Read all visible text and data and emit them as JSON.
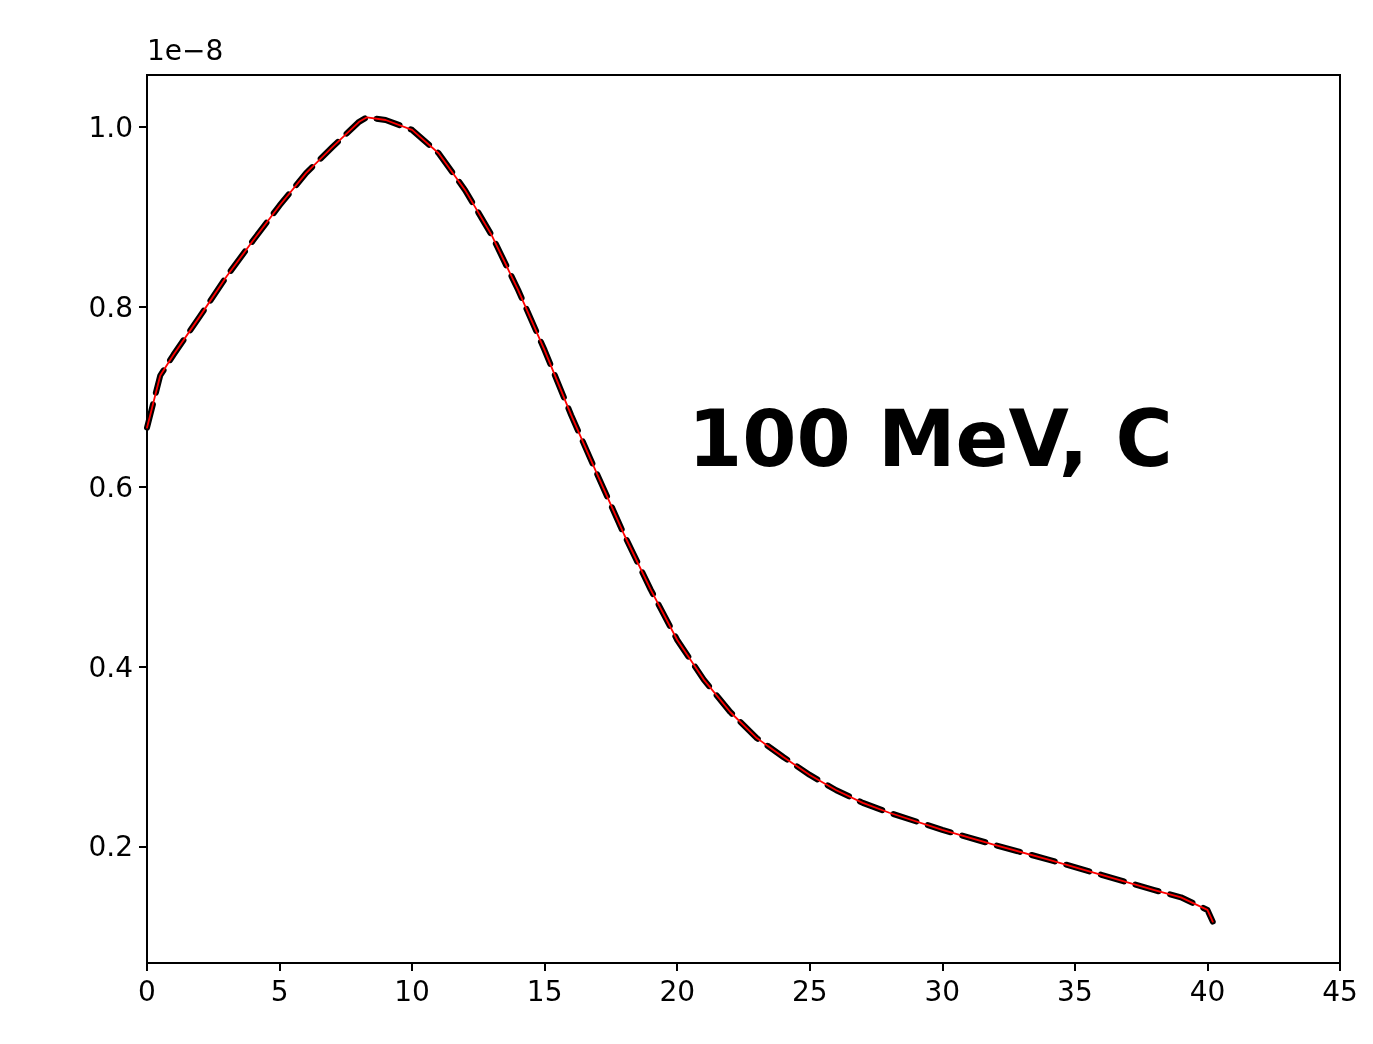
{
  "chart_data": {
    "type": "line",
    "ylabel": "1e−8",
    "x": [
      0,
      0.5,
      1,
      2,
      3,
      4,
      5,
      6,
      7,
      8,
      8.3,
      9,
      10,
      11,
      12,
      13,
      14,
      15,
      16,
      17,
      18,
      19,
      20,
      21,
      22,
      23,
      24,
      25,
      26,
      27,
      28,
      30,
      32,
      34,
      36,
      38,
      39,
      40,
      40.2
    ],
    "series": [
      {
        "color": "#000000",
        "line_style": "dashed",
        "values": [
          0.666,
          0.724,
          0.747,
          0.79,
          0.834,
          0.874,
          0.913,
          0.949,
          0.978,
          1.006,
          1.011,
          1.008,
          0.997,
          0.971,
          0.93,
          0.88,
          0.819,
          0.752,
          0.68,
          0.613,
          0.547,
          0.486,
          0.43,
          0.386,
          0.35,
          0.321,
          0.3,
          0.28,
          0.263,
          0.249,
          0.238,
          0.219,
          0.202,
          0.186,
          0.169,
          0.152,
          0.144,
          0.13,
          0.117
        ]
      },
      {
        "color": "#ff0000",
        "line_style": "solid",
        "values": [
          0.666,
          0.724,
          0.747,
          0.79,
          0.834,
          0.874,
          0.913,
          0.949,
          0.978,
          1.006,
          1.011,
          1.008,
          0.997,
          0.971,
          0.93,
          0.88,
          0.819,
          0.752,
          0.68,
          0.613,
          0.547,
          0.486,
          0.43,
          0.386,
          0.35,
          0.321,
          0.3,
          0.28,
          0.263,
          0.249,
          0.238,
          0.219,
          0.202,
          0.186,
          0.169,
          0.152,
          0.144,
          0.13,
          0.117
        ]
      }
    ],
    "xlim": [
      0,
      45
    ],
    "xticks": [
      0,
      5,
      10,
      15,
      20,
      25,
      30,
      35,
      40,
      45
    ],
    "ylim": [
      0.071,
      1.058
    ],
    "yticks": [
      {
        "value": 0.2,
        "label": "0.2"
      },
      {
        "value": 0.4,
        "label": "0.4"
      },
      {
        "value": 0.6,
        "label": "0.6"
      },
      {
        "value": 0.8,
        "label": "0.8"
      },
      {
        "value": 1.0,
        "label": "1.0"
      }
    ],
    "annotations": [
      "100 MeV, C"
    ],
    "grid": false,
    "marker": "none"
  }
}
